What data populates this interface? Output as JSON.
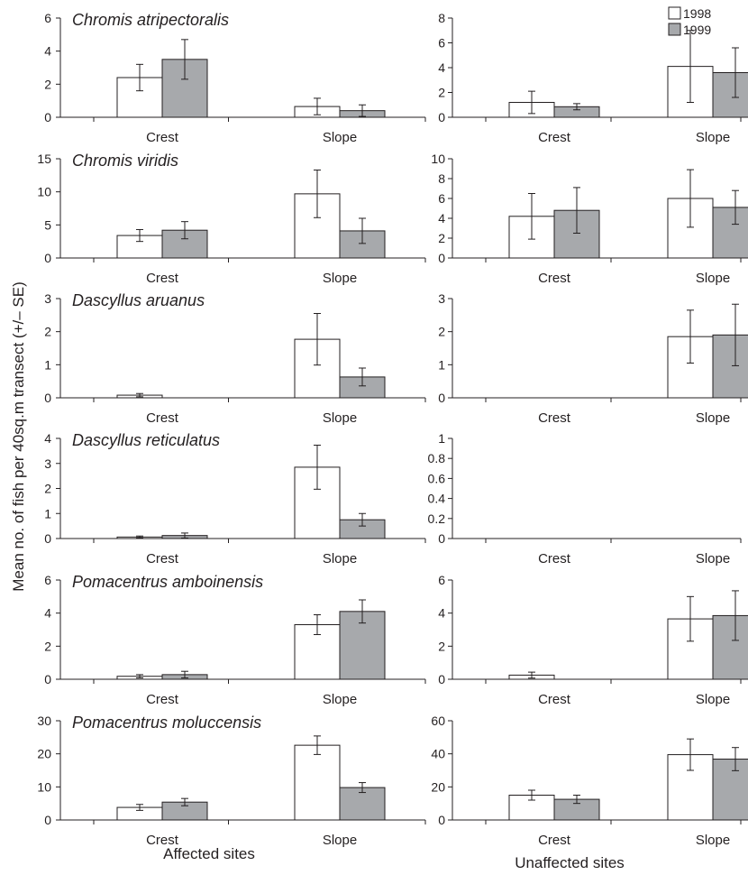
{
  "figure": {
    "ylabel": "Mean no. of fish per 40sq.m transect (+/– SE)",
    "column_labels": [
      "Affected sites",
      "Unaffected sites"
    ]
  },
  "legend": {
    "placement": "top-right",
    "entries": [
      {
        "label": "1998",
        "color": "#ffffff"
      },
      {
        "label": "1999",
        "color": "#a7a9ac"
      }
    ]
  },
  "colors": {
    "bar_1998": "#ffffff",
    "bar_1999": "#a7a9ac",
    "stroke": "#231f20"
  },
  "chart_data": [
    {
      "type": "bar",
      "title": "Chromis atripectoralis",
      "panel": "Affected sites",
      "categories": [
        "Crest",
        "Slope"
      ],
      "yticks": [
        "0",
        "2",
        "4",
        "6"
      ],
      "ylim": [
        0,
        6
      ],
      "series": [
        {
          "name": "1998",
          "values": [
            2.4,
            0.65
          ],
          "se": [
            0.8,
            0.5
          ]
        },
        {
          "name": "1999",
          "values": [
            3.5,
            0.4
          ],
          "se": [
            1.2,
            0.35
          ]
        }
      ]
    },
    {
      "type": "bar",
      "title": "",
      "panel": "Unaffected sites",
      "categories": [
        "Crest",
        "Slope"
      ],
      "yticks": [
        "0",
        "2",
        "4",
        "6",
        "8"
      ],
      "ylim": [
        0,
        8
      ],
      "series": [
        {
          "name": "1998",
          "values": [
            1.2,
            4.1
          ],
          "se": [
            0.9,
            2.9
          ]
        },
        {
          "name": "1999",
          "values": [
            0.85,
            3.6
          ],
          "se": [
            0.25,
            2.0
          ]
        }
      ]
    },
    {
      "type": "bar",
      "title": "Chromis viridis",
      "panel": "Affected sites",
      "categories": [
        "Crest",
        "Slope"
      ],
      "yticks": [
        "0",
        "5",
        "10",
        "15"
      ],
      "ylim": [
        0,
        15
      ],
      "series": [
        {
          "name": "1998",
          "values": [
            3.4,
            9.7
          ],
          "se": [
            0.9,
            3.6
          ]
        },
        {
          "name": "1999",
          "values": [
            4.2,
            4.1
          ],
          "se": [
            1.3,
            1.9
          ]
        }
      ]
    },
    {
      "type": "bar",
      "title": "",
      "panel": "Unaffected sites",
      "categories": [
        "Crest",
        "Slope"
      ],
      "yticks": [
        "0",
        "2",
        "4",
        "6",
        "8",
        "10"
      ],
      "ylim": [
        0,
        10
      ],
      "series": [
        {
          "name": "1998",
          "values": [
            4.2,
            6.0
          ],
          "se": [
            2.3,
            2.9
          ]
        },
        {
          "name": "1999",
          "values": [
            4.8,
            5.1
          ],
          "se": [
            2.3,
            1.7
          ]
        }
      ]
    },
    {
      "type": "bar",
      "title": "Dascyllus aruanus",
      "panel": "Affected sites",
      "categories": [
        "Crest",
        "Slope"
      ],
      "yticks": [
        "0",
        "1",
        "2",
        "3"
      ],
      "ylim": [
        0,
        3
      ],
      "series": [
        {
          "name": "1998",
          "values": [
            0.08,
            1.77
          ],
          "se": [
            0.05,
            0.78
          ]
        },
        {
          "name": "1999",
          "values": [
            0,
            0.63
          ],
          "se": [
            0,
            0.27
          ]
        }
      ]
    },
    {
      "type": "bar",
      "title": "",
      "panel": "Unaffected sites",
      "categories": [
        "Crest",
        "Slope"
      ],
      "yticks": [
        "0",
        "1",
        "2",
        "3"
      ],
      "ylim": [
        0,
        3
      ],
      "series": [
        {
          "name": "1998",
          "values": [
            0,
            1.85
          ],
          "se": [
            0,
            0.8
          ]
        },
        {
          "name": "1999",
          "values": [
            0,
            1.9
          ],
          "se": [
            0,
            0.93
          ]
        }
      ]
    },
    {
      "type": "bar",
      "title": "Dascyllus reticulatus",
      "panel": "Affected sites",
      "categories": [
        "Crest",
        "Slope"
      ],
      "yticks": [
        "0",
        "1",
        "2",
        "3",
        "4"
      ],
      "ylim": [
        0,
        4
      ],
      "series": [
        {
          "name": "1998",
          "values": [
            0.06,
            2.85
          ],
          "se": [
            0.04,
            0.88
          ]
        },
        {
          "name": "1999",
          "values": [
            0.12,
            0.75
          ],
          "se": [
            0.1,
            0.25
          ]
        }
      ]
    },
    {
      "type": "bar",
      "title": "",
      "panel": "Unaffected sites",
      "categories": [
        "Crest",
        "Slope"
      ],
      "yticks": [
        "0",
        "0.2",
        "0.4",
        "0.6",
        "0.8",
        "1"
      ],
      "ylim": [
        0,
        1
      ],
      "series": [
        {
          "name": "1998",
          "values": [
            0,
            0
          ],
          "se": [
            0,
            0
          ]
        },
        {
          "name": "1999",
          "values": [
            0,
            0
          ],
          "se": [
            0,
            0
          ]
        }
      ]
    },
    {
      "type": "bar",
      "title": "Pomacentrus amboinensis",
      "panel": "Affected sites",
      "categories": [
        "Crest",
        "Slope"
      ],
      "yticks": [
        "0",
        "2",
        "4",
        "6"
      ],
      "ylim": [
        0,
        6
      ],
      "series": [
        {
          "name": "1998",
          "values": [
            0.18,
            3.3
          ],
          "se": [
            0.1,
            0.6
          ]
        },
        {
          "name": "1999",
          "values": [
            0.28,
            4.1
          ],
          "se": [
            0.2,
            0.7
          ]
        }
      ]
    },
    {
      "type": "bar",
      "title": "",
      "panel": "Unaffected sites",
      "categories": [
        "Crest",
        "Slope"
      ],
      "yticks": [
        "0",
        "2",
        "4",
        "6"
      ],
      "ylim": [
        0,
        6
      ],
      "series": [
        {
          "name": "1998",
          "values": [
            0.25,
            3.65
          ],
          "se": [
            0.18,
            1.35
          ]
        },
        {
          "name": "1999",
          "values": [
            0,
            3.85
          ],
          "se": [
            0,
            1.5
          ]
        }
      ]
    },
    {
      "type": "bar",
      "title": "Pomacentrus moluccensis",
      "panel": "Affected sites",
      "categories": [
        "Crest",
        "Slope"
      ],
      "yticks": [
        "0",
        "10",
        "20",
        "30"
      ],
      "ylim": [
        0,
        30
      ],
      "series": [
        {
          "name": "1998",
          "values": [
            3.8,
            22.6
          ],
          "se": [
            0.9,
            2.8
          ]
        },
        {
          "name": "1999",
          "values": [
            5.4,
            9.8
          ],
          "se": [
            1.1,
            1.5
          ]
        }
      ]
    },
    {
      "type": "bar",
      "title": "",
      "panel": "Unaffected sites",
      "categories": [
        "Crest",
        "Slope"
      ],
      "yticks": [
        "0",
        "20",
        "40",
        "60"
      ],
      "ylim": [
        0,
        60
      ],
      "series": [
        {
          "name": "1998",
          "values": [
            15,
            39.5
          ],
          "se": [
            3,
            9.5
          ]
        },
        {
          "name": "1999",
          "values": [
            12.5,
            36.8
          ],
          "se": [
            2.5,
            7
          ]
        }
      ]
    }
  ]
}
